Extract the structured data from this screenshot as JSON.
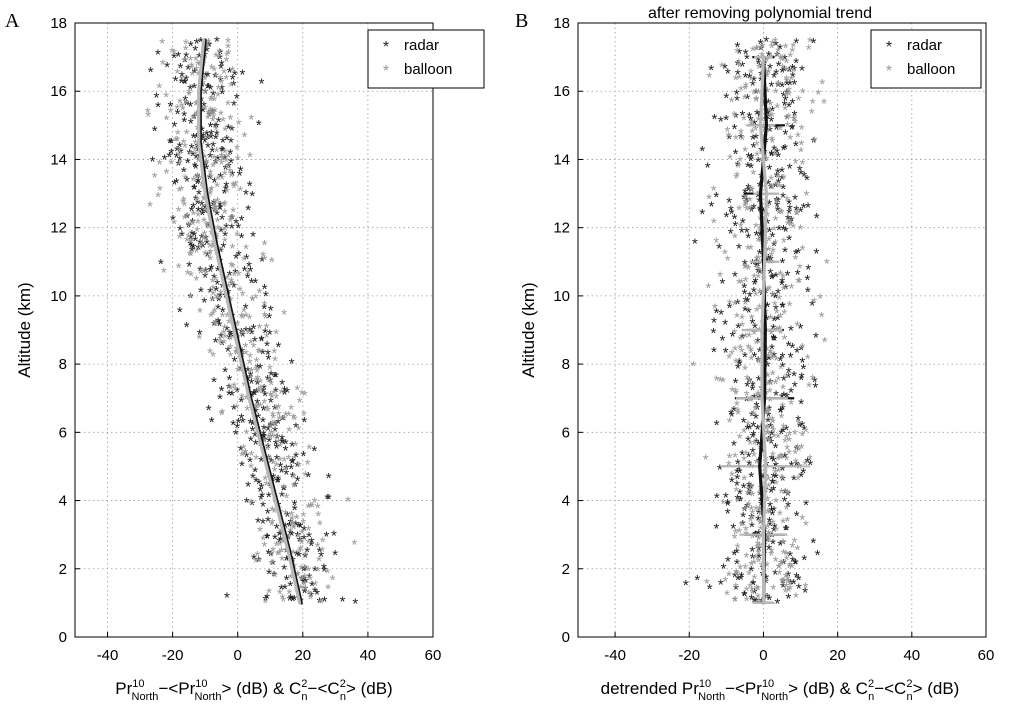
{
  "chart_data": [
    {
      "panel_label": "A",
      "type": "scatter",
      "title": "",
      "xlabel": {
        "base": "Pr",
        "sup": "10",
        "sub": "North",
        "mid": "−<Pr",
        "mid_sup": "10",
        "mid_sub": "North",
        "end": "> (dB) & C",
        "c_sup": "2",
        "c_sub": "n",
        "c_mid": "−<C",
        "c2_sup": "2",
        "c2_sub": "n",
        "c_end": "> (dB)"
      },
      "ylabel": "Altitude (km)",
      "xlim": [
        -50,
        60
      ],
      "ylim": [
        0,
        18
      ],
      "xticks": [
        "-40",
        "-20",
        "0",
        "20",
        "40",
        "60"
      ],
      "xtick_values": [
        -40,
        -20,
        0,
        20,
        40,
        60
      ],
      "yticks": [
        "0",
        "2",
        "4",
        "6",
        "8",
        "10",
        "12",
        "14",
        "16",
        "18"
      ],
      "ytick_values": [
        0,
        2,
        4,
        6,
        8,
        10,
        12,
        14,
        16,
        18
      ],
      "grid": true,
      "legend": {
        "position": "top-right",
        "entries": [
          {
            "label": "radar",
            "color": "#222222"
          },
          {
            "label": "balloon",
            "color": "#9a9a9a"
          }
        ]
      },
      "series": [
        {
          "name": "radar",
          "kind": "scatter",
          "color": "#222222",
          "trend": "decreasing-with-altitude",
          "y_range": [
            1,
            17.5
          ],
          "x_center_at_y": [
            [
              1,
              19
            ],
            [
              4,
              13
            ],
            [
              6,
              8
            ],
            [
              8,
              3
            ],
            [
              10,
              -3
            ],
            [
              12,
              -8
            ],
            [
              14,
              -11
            ],
            [
              16,
              -11
            ],
            [
              17.5,
              -10
            ]
          ],
          "x_spread": 7
        },
        {
          "name": "balloon",
          "kind": "scatter",
          "color": "#9a9a9a",
          "trend": "decreasing-with-altitude",
          "y_range": [
            1,
            17.5
          ],
          "x_center_at_y": [
            [
              1,
              20
            ],
            [
              4,
              14
            ],
            [
              6,
              9
            ],
            [
              8,
              3
            ],
            [
              10,
              -3
            ],
            [
              12,
              -8
            ],
            [
              14,
              -11
            ],
            [
              16,
              -11
            ],
            [
              17.5,
              -10
            ]
          ],
          "x_spread": 7
        },
        {
          "name": "radar fit",
          "kind": "line",
          "color": "#111111",
          "points": [
            [
              19.5,
              1
            ],
            [
              16,
              2.5
            ],
            [
              12,
              4
            ],
            [
              8,
              5.5
            ],
            [
              4,
              7
            ],
            [
              0.5,
              8.5
            ],
            [
              -3,
              10
            ],
            [
              -6.5,
              11.5
            ],
            [
              -9.5,
              13
            ],
            [
              -11.5,
              14.5
            ],
            [
              -11.5,
              16
            ],
            [
              -10,
              17.5
            ]
          ]
        },
        {
          "name": "balloon fit",
          "kind": "line",
          "color": "#b8b8b8",
          "points": [
            [
              19,
              1
            ],
            [
              15.5,
              2.5
            ],
            [
              11.5,
              4
            ],
            [
              7.5,
              5.5
            ],
            [
              3.5,
              7
            ],
            [
              0,
              8.5
            ],
            [
              -3.5,
              10
            ],
            [
              -7,
              11.5
            ],
            [
              -10,
              13
            ],
            [
              -12,
              14.5
            ],
            [
              -12,
              16
            ],
            [
              -10.5,
              17.5
            ]
          ]
        }
      ]
    },
    {
      "panel_label": "B",
      "type": "scatter",
      "title": "after removing polynomial trend",
      "xlabel": {
        "pre": "detrended ",
        "base": "Pr",
        "sup": "10",
        "sub": "North",
        "mid": "−<Pr",
        "mid_sup": "10",
        "mid_sub": "North",
        "end": "> (dB) & C",
        "c_sup": "2",
        "c_sub": "n",
        "c_mid": "−<C",
        "c2_sup": "2",
        "c2_sub": "n",
        "c_end": "> (dB)"
      },
      "ylabel": "Altitude (km)",
      "xlim": [
        -50,
        60
      ],
      "ylim": [
        0,
        18
      ],
      "xticks": [
        "-40",
        "-20",
        "0",
        "20",
        "40",
        "60"
      ],
      "xtick_values": [
        -40,
        -20,
        0,
        20,
        40,
        60
      ],
      "yticks": [
        "0",
        "2",
        "4",
        "6",
        "8",
        "10",
        "12",
        "14",
        "16",
        "18"
      ],
      "ytick_values": [
        0,
        2,
        4,
        6,
        8,
        10,
        12,
        14,
        16,
        18
      ],
      "grid": true,
      "legend": {
        "position": "top-right",
        "entries": [
          {
            "label": "radar",
            "color": "#222222"
          },
          {
            "label": "balloon",
            "color": "#9a9a9a"
          }
        ]
      },
      "series": [
        {
          "name": "radar",
          "kind": "scatter",
          "color": "#222222",
          "y_range": [
            1,
            17.5
          ],
          "x_center": 0,
          "x_spread": 7
        },
        {
          "name": "balloon",
          "kind": "scatter",
          "color": "#9a9a9a",
          "y_range": [
            1,
            17.5
          ],
          "x_center": 0,
          "x_spread": 7
        },
        {
          "name": "radar mean",
          "kind": "line",
          "color": "#111111",
          "points": [
            [
              0,
              1
            ],
            [
              0.3,
              3
            ],
            [
              -1,
              5
            ],
            [
              0.3,
              7
            ],
            [
              0.5,
              9
            ],
            [
              0,
              11
            ],
            [
              -0.8,
              13
            ],
            [
              0.8,
              15
            ],
            [
              0,
              17
            ]
          ]
        },
        {
          "name": "balloon mean",
          "kind": "line",
          "color": "#b8b8b8",
          "points": [
            [
              0,
              1
            ],
            [
              0,
              3
            ],
            [
              0.6,
              5
            ],
            [
              -0.4,
              7
            ],
            [
              -0.4,
              9
            ],
            [
              0.3,
              11
            ],
            [
              0.8,
              13
            ],
            [
              -0.8,
              15
            ],
            [
              0,
              17
            ]
          ]
        },
        {
          "name": "radar error bars",
          "kind": "errorbar",
          "color": "#111111",
          "bars": [
            {
              "y": 1,
              "x": 0,
              "half_width": 2.5
            },
            {
              "y": 3,
              "x": 0.3,
              "half_width": 5.5
            },
            {
              "y": 5,
              "x": -1,
              "half_width": 10
            },
            {
              "y": 7,
              "x": 0.3,
              "half_width": 8
            },
            {
              "y": 9,
              "x": 0.5,
              "half_width": 5
            },
            {
              "y": 11,
              "x": 0,
              "half_width": 3
            },
            {
              "y": 13,
              "x": -0.8,
              "half_width": 4.5
            },
            {
              "y": 15,
              "x": 0.8,
              "half_width": 5
            },
            {
              "y": 17,
              "x": 0,
              "half_width": 3
            }
          ]
        },
        {
          "name": "balloon error bars",
          "kind": "errorbar",
          "color": "#b8b8b8",
          "bars": [
            {
              "y": 1,
              "x": 0,
              "half_width": 3
            },
            {
              "y": 3,
              "x": 0,
              "half_width": 6.5
            },
            {
              "y": 5,
              "x": 0.6,
              "half_width": 12
            },
            {
              "y": 7,
              "x": -0.4,
              "half_width": 7
            },
            {
              "y": 9,
              "x": -0.4,
              "half_width": 5.5
            },
            {
              "y": 11,
              "x": 0.3,
              "half_width": 4
            },
            {
              "y": 13,
              "x": 0.8,
              "half_width": 3.5
            },
            {
              "y": 15,
              "x": -0.8,
              "half_width": 4
            },
            {
              "y": 17,
              "x": 0,
              "half_width": 2.5
            }
          ]
        }
      ]
    }
  ]
}
